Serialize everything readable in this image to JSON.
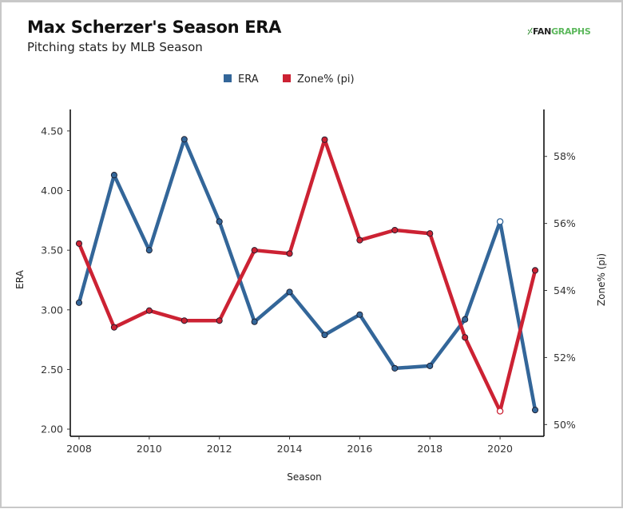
{
  "header": {
    "title": "Max Scherzer's Season ERA",
    "subtitle": "Pitching stats by MLB Season",
    "logo_prefix": "FAN",
    "logo_suffix": "GRAPHS"
  },
  "chart_data": {
    "type": "line",
    "title": "Max Scherzer's Season ERA",
    "subtitle": "Pitching stats by MLB Season",
    "xlabel": "Season",
    "ylabel": "ERA",
    "y2label": "Zone% (pi)",
    "x": [
      2008,
      2009,
      2010,
      2011,
      2012,
      2013,
      2014,
      2015,
      2016,
      2017,
      2018,
      2019,
      2020,
      2021
    ],
    "xlim": [
      2007.75,
      2021.25
    ],
    "xticks": [
      2008,
      2010,
      2012,
      2014,
      2016,
      2018,
      2020
    ],
    "xtick_labels": [
      "2008",
      "2010",
      "2012",
      "2014",
      "2016",
      "2018",
      "2020"
    ],
    "ylim": [
      1.94,
      4.68
    ],
    "yticks": [
      2.0,
      2.5,
      3.0,
      3.5,
      4.0,
      4.5
    ],
    "ytick_labels": [
      "2.00",
      "2.50",
      "3.00",
      "3.50",
      "4.00",
      "4.50"
    ],
    "y2lim": [
      49.65,
      59.4
    ],
    "y2ticks": [
      50,
      52,
      54,
      56,
      58
    ],
    "y2tick_labels": [
      "50%",
      "52%",
      "54%",
      "56%",
      "58%"
    ],
    "grid": false,
    "legend_position": "top-center",
    "series": [
      {
        "name": "ERA",
        "axis": "left",
        "color": "#336699",
        "values": [
          3.06,
          4.13,
          3.5,
          4.43,
          3.74,
          2.9,
          3.15,
          2.79,
          2.96,
          2.51,
          2.53,
          2.92,
          3.74,
          2.16
        ],
        "hollow_points": [
          2020
        ]
      },
      {
        "name": "Zone% (pi)",
        "axis": "right",
        "color": "#cc2233",
        "values": [
          55.4,
          52.9,
          53.4,
          53.1,
          53.1,
          55.2,
          55.1,
          58.5,
          55.5,
          55.8,
          55.7,
          52.6,
          50.4,
          54.6
        ],
        "hollow_points": [
          2020
        ]
      }
    ]
  }
}
